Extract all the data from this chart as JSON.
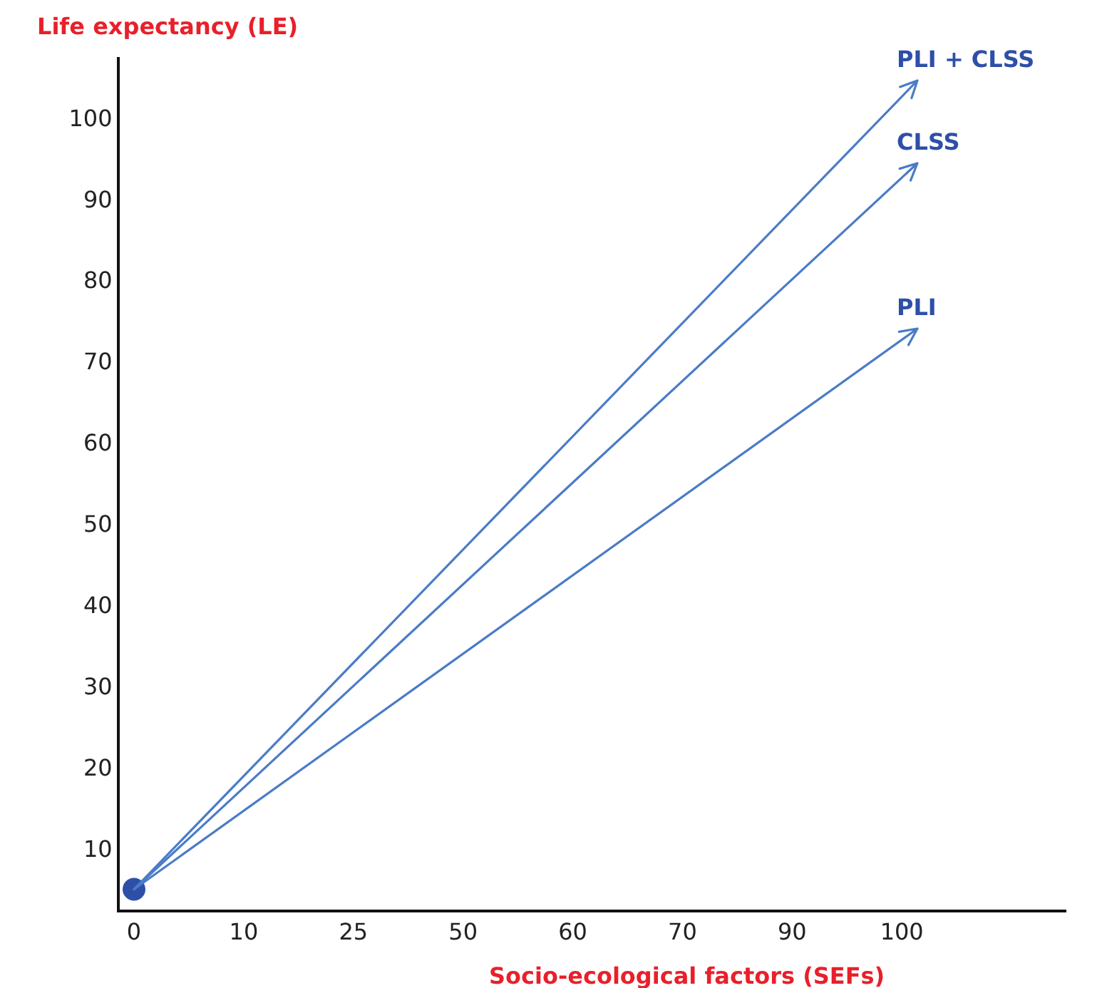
{
  "chart_data": {
    "type": "scatter",
    "xlabel": "Socio-ecological factors (SEFs)",
    "ylabel": "Life expectancy (LE)",
    "categories": [
      "0",
      "10",
      "25",
      "50",
      "60",
      "70",
      "90",
      "100"
    ],
    "ylim": [
      2.5,
      107.5
    ],
    "yticks": [
      10,
      20,
      30,
      40,
      50,
      60,
      70,
      80,
      90,
      100
    ],
    "grid": false,
    "marker": "circle",
    "series": [
      {
        "color": "#2e4fa8",
        "x": [
          "0"
        ],
        "values": [
          5
        ]
      }
    ],
    "annotations": [
      "PLI + CLSS",
      "CLSS",
      "PLI"
    ]
  }
}
